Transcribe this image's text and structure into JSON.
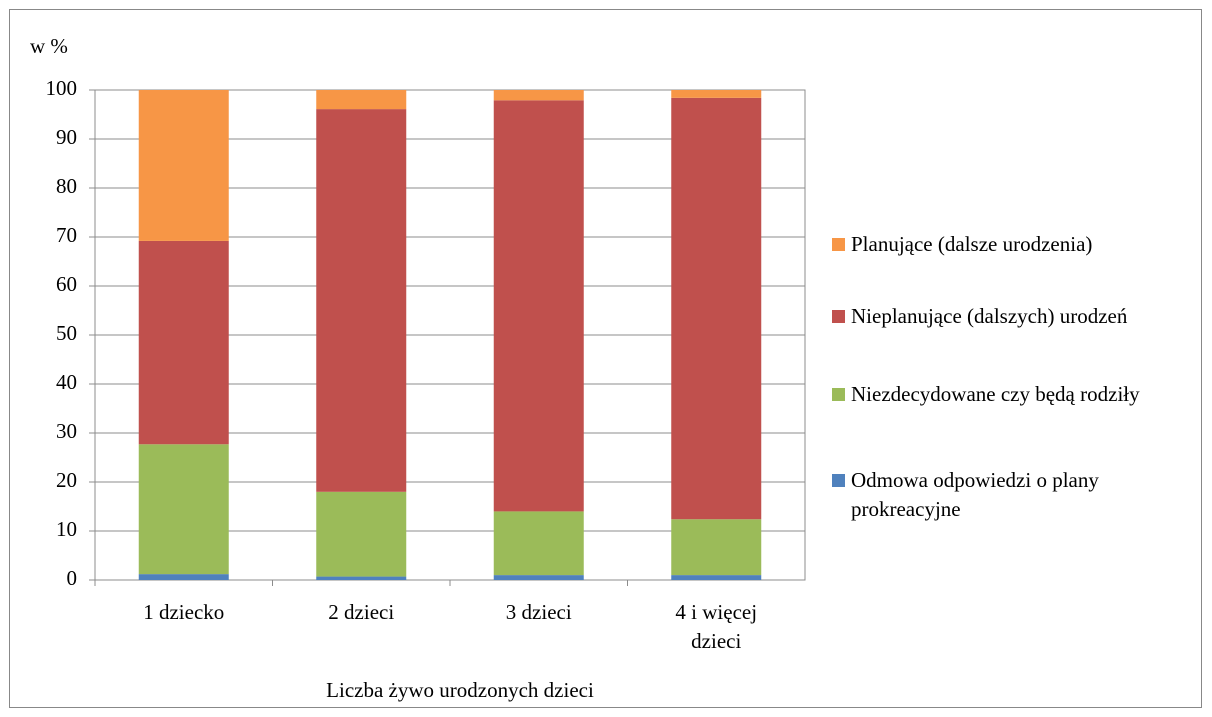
{
  "chart_data": {
    "type": "stacked_bar",
    "y_label": "w %",
    "x_label": "Liczba żywo urodzonych dzieci",
    "categories": [
      "1 dziecko",
      "2 dzieci",
      "3 dzieci",
      "4 i więcej dzieci"
    ],
    "series": [
      {
        "name": "Odmowa odpowiedzi o plany prokreacyjne",
        "color": "#4f81bd",
        "values": [
          1.2,
          0.7,
          1.0,
          1.0
        ]
      },
      {
        "name": "Niezdecydowane czy będą rodziły",
        "color": "#9bbb59",
        "values": [
          26.5,
          17.3,
          13.0,
          11.4
        ]
      },
      {
        "name": "Nieplanujące (dalszych) urodzeń",
        "color": "#c0504d",
        "values": [
          41.5,
          78.1,
          83.9,
          86.0
        ]
      },
      {
        "name": "Planujące (dalsze urodzenia)",
        "color": "#f79646",
        "values": [
          30.8,
          3.9,
          2.1,
          1.6
        ]
      }
    ],
    "ylim": [
      0,
      100
    ],
    "yticks": [
      0,
      10,
      20,
      30,
      40,
      50,
      60,
      70,
      80,
      90,
      100
    ],
    "grid": true,
    "legend": "right"
  }
}
